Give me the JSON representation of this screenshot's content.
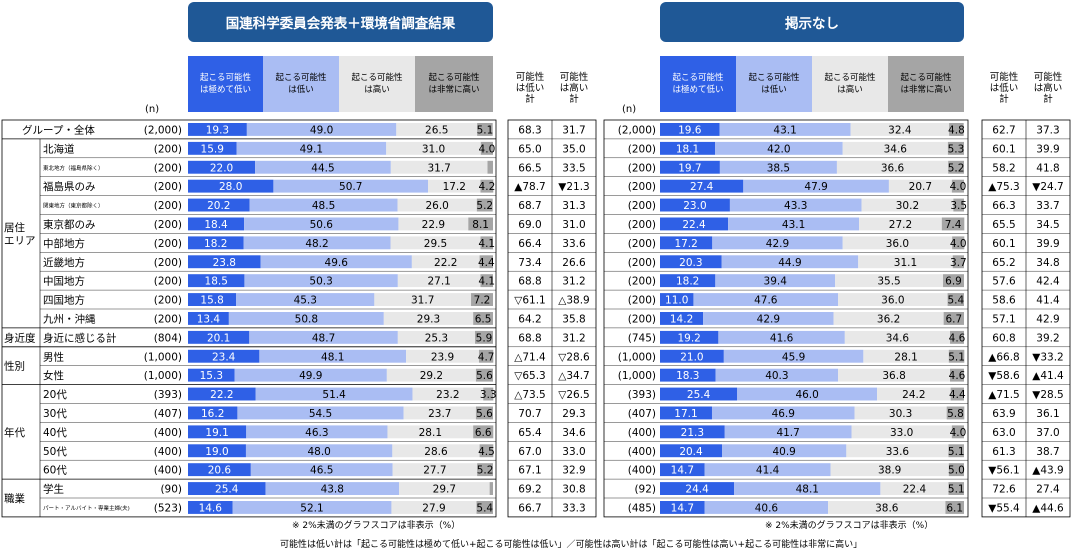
{
  "panel_titles": [
    "国連科学委員会発表＋環境省調査結果",
    "掲示なし"
  ],
  "n_header": "(n)",
  "legend": [
    {
      "label": "起こる可能性\nは極めて低い",
      "color": "#2f60e6",
      "text_color": "#ffffff"
    },
    {
      "label": "起こる可能性\nは低い",
      "color": "#aabdf3",
      "text_color": "#000000"
    },
    {
      "label": "起こる可能性\nは高い",
      "color": "#e8e8e8",
      "text_color": "#000000"
    },
    {
      "label": "起こる可能性\nは非常に高い",
      "color": "#a5a5a5",
      "text_color": "#000000"
    }
  ],
  "summary_headers": [
    "可能性\nは低い\n計",
    "可能性\nは高い\n計"
  ],
  "group_labels": [
    {
      "label": "居住\nエリア",
      "from": 1,
      "to": 10
    },
    {
      "label": "身近度",
      "from": 11,
      "to": 11
    },
    {
      "label": "性別",
      "from": 12,
      "to": 13
    },
    {
      "label": "年代",
      "from": 14,
      "to": 18
    },
    {
      "label": "職業",
      "from": 19,
      "to": 20
    }
  ],
  "notes": {
    "left": "※ 2%未満のグラフスコアは非表示（%）",
    "right": "※ 2%未満のグラフスコアは非表示（%）",
    "bottom": "可能性は低い計は「起こる可能性は極めて低い+起こる可能性は低い」／可能性は高い計は「起こる可能性は高い+起こる可能性は非常に高い」"
  },
  "chart_data": [
    {
      "type": "bar",
      "title": "国連科学委員会発表＋環境省調査結果",
      "stacked": "100%",
      "categories": [
        "グループ・全体",
        "北海道",
        "東北地方（福島県除く）",
        "福島県のみ",
        "関東地方（東京都除く）",
        "東京都のみ",
        "中部地方",
        "近畿地方",
        "中国地方",
        "四国地方",
        "九州・沖縄",
        "身近に感じる計",
        "男性",
        "女性",
        "20代",
        "30代",
        "40代",
        "50代",
        "60代",
        "学生",
        "パート・アルバイト・専業主婦(夫)"
      ],
      "n": [
        "(2,000)",
        "(200)",
        "(200)",
        "(200)",
        "(200)",
        "(200)",
        "(200)",
        "(200)",
        "(200)",
        "(200)",
        "(200)",
        "(804)",
        "(1,000)",
        "(1,000)",
        "(393)",
        "(407)",
        "(400)",
        "(400)",
        "(400)",
        "(90)",
        "(523)"
      ],
      "series": [
        {
          "name": "起こる可能性は極めて低い",
          "values": [
            19.3,
            15.9,
            22.0,
            28.0,
            20.2,
            18.4,
            18.2,
            23.8,
            18.5,
            15.8,
            13.4,
            20.1,
            23.4,
            15.3,
            22.2,
            16.2,
            19.1,
            19.0,
            20.6,
            25.4,
            14.6
          ]
        },
        {
          "name": "起こる可能性は低い",
          "values": [
            49.0,
            49.1,
            44.5,
            50.7,
            48.5,
            50.6,
            48.2,
            49.6,
            50.3,
            45.3,
            50.8,
            48.7,
            48.1,
            49.9,
            51.4,
            54.5,
            46.3,
            48.0,
            46.5,
            43.8,
            52.1
          ]
        },
        {
          "name": "起こる可能性は高い",
          "values": [
            26.5,
            31.0,
            31.7,
            17.2,
            26.0,
            22.9,
            29.5,
            22.2,
            27.1,
            31.7,
            29.3,
            25.3,
            23.9,
            29.2,
            23.2,
            23.7,
            28.1,
            28.6,
            27.7,
            29.7,
            27.9
          ]
        },
        {
          "name": "起こる可能性は非常に高い",
          "values": [
            5.1,
            4.0,
            1.8,
            4.2,
            5.2,
            8.1,
            4.1,
            4.4,
            4.1,
            7.2,
            6.5,
            5.9,
            4.7,
            5.6,
            3.3,
            5.6,
            6.6,
            4.5,
            5.2,
            1.1,
            5.4
          ]
        }
      ],
      "labels_shown": [
        [
          true,
          true,
          true,
          true,
          true,
          true,
          true,
          true,
          true,
          true,
          true,
          true,
          true,
          true,
          true,
          true,
          true,
          true,
          true,
          true,
          true
        ],
        [
          true,
          true,
          true,
          true,
          true,
          true,
          true,
          true,
          true,
          true,
          true,
          true,
          true,
          true,
          true,
          true,
          true,
          true,
          true,
          true,
          true
        ],
        [
          true,
          true,
          true,
          true,
          true,
          true,
          true,
          true,
          true,
          true,
          true,
          true,
          true,
          true,
          true,
          true,
          true,
          true,
          true,
          true,
          true
        ],
        [
          true,
          true,
          false,
          true,
          true,
          true,
          true,
          true,
          true,
          true,
          true,
          true,
          true,
          true,
          true,
          true,
          true,
          true,
          true,
          false,
          true
        ]
      ],
      "low_total": [
        "68.3",
        "65.0",
        "66.5",
        "▲78.7",
        "68.7",
        "69.0",
        "66.4",
        "73.4",
        "68.8",
        "▽61.1",
        "64.2",
        "68.8",
        "△71.4",
        "▽65.3",
        "△73.5",
        "70.7",
        "65.4",
        "67.0",
        "67.1",
        "69.2",
        "66.7"
      ],
      "high_total": [
        "31.7",
        "35.0",
        "33.5",
        "▼21.3",
        "31.3",
        "31.0",
        "33.6",
        "26.6",
        "31.2",
        "△38.9",
        "35.8",
        "31.2",
        "▽28.6",
        "△34.7",
        "▽26.5",
        "29.3",
        "34.6",
        "33.0",
        "32.9",
        "30.8",
        "33.3"
      ]
    },
    {
      "type": "bar",
      "title": "掲示なし",
      "stacked": "100%",
      "categories": [
        "グループ・全体",
        "北海道",
        "東北地方（福島県除く）",
        "福島県のみ",
        "関東地方（東京都除く）",
        "東京都のみ",
        "中部地方",
        "近畿地方",
        "中国地方",
        "四国地方",
        "九州・沖縄",
        "身近に感じる計",
        "男性",
        "女性",
        "20代",
        "30代",
        "40代",
        "50代",
        "60代",
        "学生",
        "パート・アルバイト・専業主婦(夫)"
      ],
      "n": [
        "(2,000)",
        "(200)",
        "(200)",
        "(200)",
        "(200)",
        "(200)",
        "(200)",
        "(200)",
        "(200)",
        "(200)",
        "(200)",
        "(745)",
        "(1,000)",
        "(1,000)",
        "(393)",
        "(407)",
        "(400)",
        "(400)",
        "(400)",
        "(92)",
        "(485)"
      ],
      "series": [
        {
          "name": "起こる可能性は極めて低い",
          "values": [
            19.6,
            18.1,
            19.7,
            27.4,
            23.0,
            22.4,
            17.2,
            20.3,
            18.2,
            11.0,
            14.2,
            19.2,
            21.0,
            18.3,
            25.4,
            17.1,
            21.3,
            20.4,
            14.7,
            24.4,
            14.7
          ]
        },
        {
          "name": "起こる可能性は低い",
          "values": [
            43.1,
            42.0,
            38.5,
            47.9,
            43.3,
            43.1,
            42.9,
            44.9,
            39.4,
            47.6,
            42.9,
            41.6,
            45.9,
            40.3,
            46.0,
            46.9,
            41.7,
            40.9,
            41.4,
            48.1,
            40.6
          ]
        },
        {
          "name": "起こる可能性は高い",
          "values": [
            32.4,
            34.6,
            36.6,
            20.7,
            30.2,
            27.2,
            36.0,
            31.1,
            35.5,
            36.0,
            36.2,
            34.6,
            28.1,
            36.8,
            24.2,
            30.3,
            33.0,
            33.6,
            38.9,
            22.4,
            38.6
          ]
        },
        {
          "name": "起こる可能性は非常に高い",
          "values": [
            4.8,
            5.3,
            5.2,
            4.0,
            3.5,
            7.4,
            4.0,
            3.7,
            6.9,
            5.4,
            6.7,
            4.6,
            5.1,
            4.6,
            4.4,
            5.8,
            4.0,
            5.1,
            5.0,
            5.1,
            6.1
          ]
        }
      ],
      "labels_shown": [
        [
          true,
          true,
          true,
          true,
          true,
          true,
          true,
          true,
          true,
          true,
          true,
          true,
          true,
          true,
          true,
          true,
          true,
          true,
          true,
          true,
          true
        ],
        [
          true,
          true,
          true,
          true,
          true,
          true,
          true,
          true,
          true,
          true,
          true,
          true,
          true,
          true,
          true,
          true,
          true,
          true,
          true,
          true,
          true
        ],
        [
          true,
          true,
          true,
          true,
          true,
          true,
          true,
          true,
          true,
          true,
          true,
          true,
          true,
          true,
          true,
          true,
          true,
          true,
          true,
          true,
          true
        ],
        [
          true,
          true,
          true,
          true,
          true,
          true,
          true,
          true,
          true,
          true,
          true,
          true,
          true,
          true,
          true,
          true,
          true,
          true,
          true,
          true,
          true
        ]
      ],
      "low_total": [
        "62.7",
        "60.1",
        "58.2",
        "▲75.3",
        "66.3",
        "65.5",
        "60.1",
        "65.2",
        "57.6",
        "58.6",
        "57.1",
        "60.8",
        "▲66.8",
        "▼58.6",
        "▲71.5",
        "63.9",
        "63.0",
        "61.3",
        "▼56.1",
        "72.6",
        "▼55.4"
      ],
      "high_total": [
        "37.3",
        "39.9",
        "41.8",
        "▼24.7",
        "33.7",
        "34.5",
        "39.9",
        "34.8",
        "42.4",
        "41.4",
        "42.9",
        "39.2",
        "▼33.2",
        "▲41.4",
        "▼28.5",
        "36.1",
        "37.0",
        "38.7",
        "▲43.9",
        "27.4",
        "▲44.6"
      ]
    }
  ]
}
